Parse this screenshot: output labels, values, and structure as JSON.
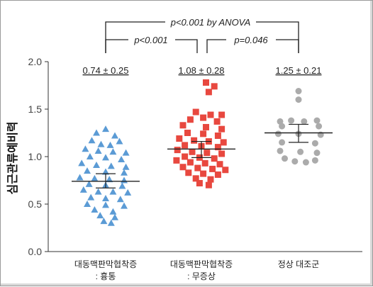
{
  "chart_data": {
    "type": "scatter",
    "ylabel": "심근관류예비력",
    "ylim": [
      0.0,
      2.0
    ],
    "yticks": [
      "0.0",
      "0.5",
      "1.0",
      "1.5",
      "2.0"
    ],
    "categories": [
      "대동맥판막협착증\n: 흉통",
      "대동맥판막협착증\n: 무증상",
      "정상 대조군"
    ],
    "annotations": {
      "anova": "p<0.001 by ANOVA",
      "pair_left": "p<0.001",
      "pair_right": "p=0.046"
    },
    "series": [
      {
        "color": "#5b9bd5",
        "marker": "triangle",
        "summary": "0.74 ± 0.25",
        "mean": 0.74,
        "err_low": 0.67,
        "err_high": 0.82,
        "points": [
          [
            0.0,
            1.29
          ],
          [
            -0.1,
            1.25
          ],
          [
            0.1,
            1.22
          ],
          [
            -0.15,
            1.17
          ],
          [
            0.15,
            1.16
          ],
          [
            -0.05,
            1.13
          ],
          [
            0.05,
            1.12
          ],
          [
            -0.22,
            1.08
          ],
          [
            -0.08,
            1.06
          ],
          [
            0.08,
            1.05
          ],
          [
            0.22,
            1.04
          ],
          [
            -0.17,
            1.0
          ],
          [
            0.0,
            0.99
          ],
          [
            0.17,
            0.97
          ],
          [
            -0.26,
            0.93
          ],
          [
            -0.1,
            0.91
          ],
          [
            0.06,
            0.9
          ],
          [
            0.22,
            0.89
          ],
          [
            -0.2,
            0.85
          ],
          [
            0.0,
            0.84
          ],
          [
            0.2,
            0.83
          ],
          [
            -0.28,
            0.78
          ],
          [
            -0.12,
            0.77
          ],
          [
            0.04,
            0.76
          ],
          [
            0.2,
            0.75
          ],
          [
            -0.18,
            0.71
          ],
          [
            0.0,
            0.7
          ],
          [
            0.18,
            0.69
          ],
          [
            -0.24,
            0.65
          ],
          [
            -0.08,
            0.63
          ],
          [
            0.08,
            0.63
          ],
          [
            0.24,
            0.62
          ],
          [
            -0.16,
            0.57
          ],
          [
            0.0,
            0.56
          ],
          [
            0.16,
            0.55
          ],
          [
            -0.2,
            0.5
          ],
          [
            0.0,
            0.49
          ],
          [
            0.2,
            0.48
          ],
          [
            -0.12,
            0.44
          ],
          [
            0.08,
            0.42
          ],
          [
            -0.06,
            0.38
          ],
          [
            0.1,
            0.36
          ],
          [
            -0.02,
            0.32
          ],
          [
            0.06,
            0.3
          ]
        ]
      },
      {
        "color": "#e8483f",
        "marker": "square",
        "summary": "1.08 ± 0.28",
        "mean": 1.08,
        "err_low": 0.99,
        "err_high": 1.16,
        "points": [
          [
            0.05,
            1.78
          ],
          [
            0.14,
            1.74
          ],
          [
            0.08,
            1.68
          ],
          [
            -0.06,
            1.47
          ],
          [
            0.1,
            1.44
          ],
          [
            0.22,
            1.44
          ],
          [
            0.02,
            1.41
          ],
          [
            -0.12,
            1.39
          ],
          [
            0.17,
            1.37
          ],
          [
            -0.2,
            1.33
          ],
          [
            0.05,
            1.31
          ],
          [
            0.22,
            1.29
          ],
          [
            -0.15,
            1.25
          ],
          [
            0.02,
            1.24
          ],
          [
            0.18,
            1.22
          ],
          [
            -0.24,
            1.19
          ],
          [
            -0.08,
            1.17
          ],
          [
            0.08,
            1.16
          ],
          [
            0.24,
            1.15
          ],
          [
            -0.18,
            1.12
          ],
          [
            0.0,
            1.11
          ],
          [
            0.18,
            1.1
          ],
          [
            -0.26,
            1.07
          ],
          [
            -0.1,
            1.05
          ],
          [
            0.06,
            1.04
          ],
          [
            0.22,
            1.03
          ],
          [
            -0.18,
            1.0
          ],
          [
            -0.02,
            0.99
          ],
          [
            0.14,
            0.98
          ],
          [
            -0.27,
            0.96
          ],
          [
            -0.12,
            0.94
          ],
          [
            0.04,
            0.93
          ],
          [
            0.2,
            0.92
          ],
          [
            -0.2,
            0.89
          ],
          [
            -0.04,
            0.88
          ],
          [
            0.12,
            0.87
          ],
          [
            0.26,
            0.86
          ],
          [
            -0.14,
            0.83
          ],
          [
            0.02,
            0.82
          ],
          [
            0.18,
            0.81
          ],
          [
            -0.06,
            0.77
          ],
          [
            0.1,
            0.76
          ],
          [
            -0.02,
            0.72
          ],
          [
            0.08,
            0.7
          ]
        ]
      },
      {
        "color": "#ababab",
        "marker": "circle",
        "summary": "1.25 ± 0.21",
        "mean": 1.25,
        "err_low": 1.15,
        "err_high": 1.34,
        "points": [
          [
            0.0,
            1.69
          ],
          [
            0.0,
            1.6
          ],
          [
            -0.2,
            1.37
          ],
          [
            -0.08,
            1.38
          ],
          [
            0.06,
            1.37
          ],
          [
            0.2,
            1.38
          ],
          [
            -0.18,
            1.32
          ],
          [
            0.22,
            1.32
          ],
          [
            -0.22,
            1.24
          ],
          [
            0.0,
            1.24
          ],
          [
            0.24,
            1.23
          ],
          [
            -0.18,
            1.15
          ],
          [
            0.18,
            1.14
          ],
          [
            -0.2,
            1.06
          ],
          [
            0.02,
            1.05
          ],
          [
            0.2,
            1.04
          ],
          [
            -0.15,
            0.98
          ],
          [
            -0.04,
            0.95
          ],
          [
            0.08,
            0.94
          ],
          [
            0.18,
            0.96
          ]
        ]
      }
    ]
  }
}
